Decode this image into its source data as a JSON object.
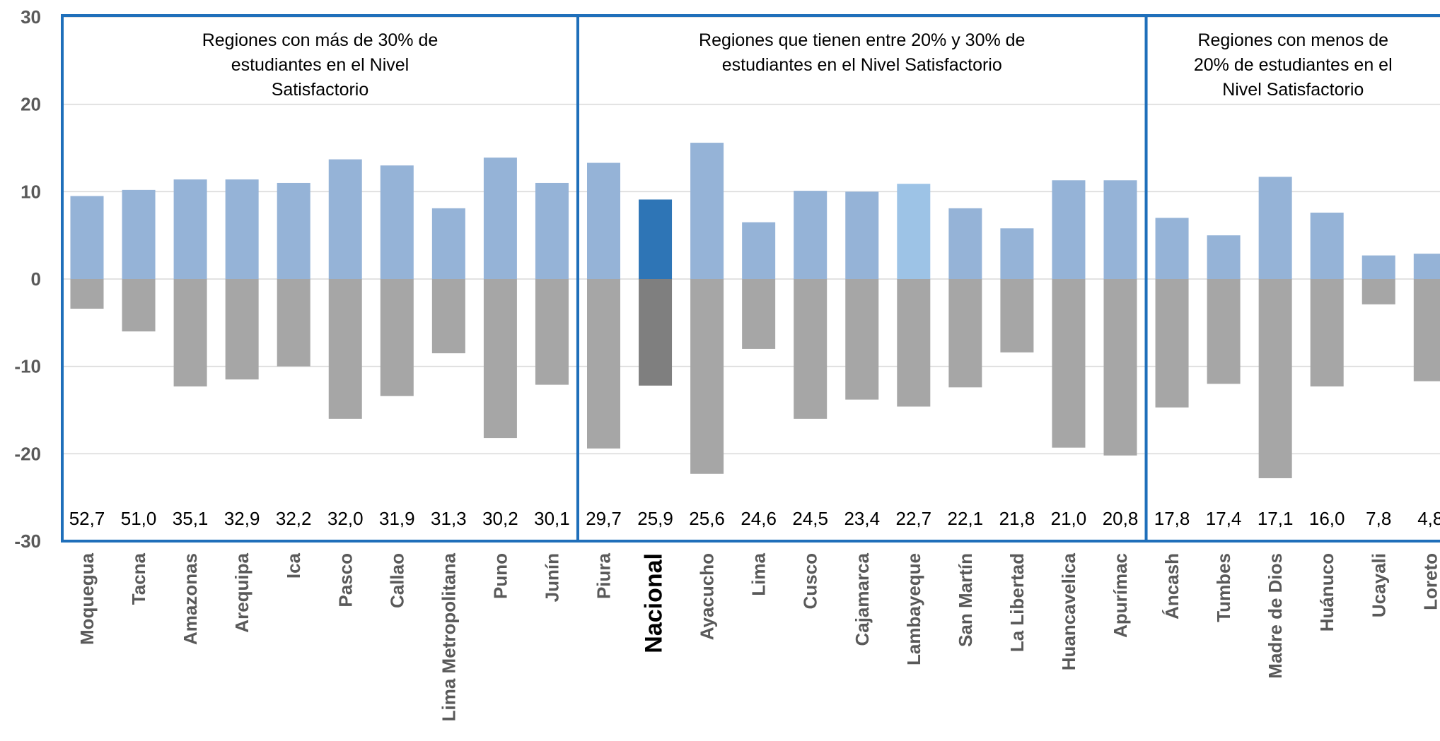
{
  "chart_data": {
    "type": "bar",
    "stacked_diverging": true,
    "ylim": [
      -30,
      30
    ],
    "yticks": [
      30,
      20,
      10,
      0,
      -10,
      -20,
      -30
    ],
    "grid": true,
    "categories": [
      "Moquegua",
      "Tacna",
      "Amazonas",
      "Arequipa",
      "Ica",
      "Pasco",
      "Callao",
      "Lima Metropolitana",
      "Puno",
      "Junín",
      "Piura",
      "Nacional",
      "Ayacucho",
      "Lima",
      "Cusco",
      "Cajamarca",
      "Lambayeque",
      "San Martín",
      "La Libertad",
      "Huancavelica",
      "Apurímac",
      "Áncash",
      "Tumbes",
      "Madre de Dios",
      "Huánuco",
      "Ucayali",
      "Loreto"
    ],
    "highlight_category": "Nacional",
    "series": [
      {
        "values": [
          9.5,
          10.2,
          11.4,
          11.4,
          11.0,
          13.7,
          13.0,
          8.1,
          13.9,
          11.0,
          13.3,
          9.1,
          15.6,
          6.5,
          10.1,
          10.0,
          10.9,
          8.1,
          5.8,
          11.3,
          11.3,
          7.0,
          5.0,
          11.7,
          7.6,
          2.7,
          2.9
        ],
        "color": "#95b3d7"
      },
      {
        "values": [
          -3.4,
          -6.0,
          -12.3,
          -11.5,
          -10.0,
          -16.0,
          -13.4,
          -8.5,
          -18.2,
          -12.1,
          -19.4,
          -12.2,
          -22.3,
          -8.0,
          -16.0,
          -13.8,
          -14.6,
          -12.4,
          -8.4,
          -19.3,
          -20.2,
          -14.7,
          -12.0,
          -22.8,
          -12.3,
          -2.9,
          -11.7
        ],
        "color": "#a6a6a6"
      }
    ],
    "labels": [
      "52,7",
      "51,0",
      "35,1",
      "32,9",
      "32,2",
      "32,0",
      "31,9",
      "31,3",
      "30,2",
      "30,1",
      "29,7",
      "25,9",
      "25,6",
      "24,6",
      "24,5",
      "23,4",
      "22,7",
      "22,1",
      "21,8",
      "21,0",
      "20,8",
      "17,8",
      "17,4",
      "17,1",
      "16,0",
      "7,8",
      "4,8"
    ],
    "bar_colors": {
      "positive": "#95b3d7",
      "negative": "#a6a6a6",
      "highlight_positive": "#2e75b6",
      "highlight_negative": "#7f7f7f",
      "alt_positive": "#9dc3e6"
    },
    "alt_color_category": "Lambayeque",
    "groups": [
      {
        "label": "Regiones con más de 30% de estudiantes en el Nivel Satisfactorio",
        "start": 0,
        "end": 9
      },
      {
        "label": "Regiones que tienen entre 20% y 30% de estudiantes en el Nivel Satisfactorio",
        "start": 10,
        "end": 20
      },
      {
        "label": "Regiones con menos de 20% de estudiantes en el Nivel Satisfactorio",
        "start": 21,
        "end": 26
      }
    ],
    "group_box_color": "#1f6fba",
    "grid_color": "#d9d9d9",
    "title": "",
    "xlabel": "",
    "ylabel": ""
  }
}
